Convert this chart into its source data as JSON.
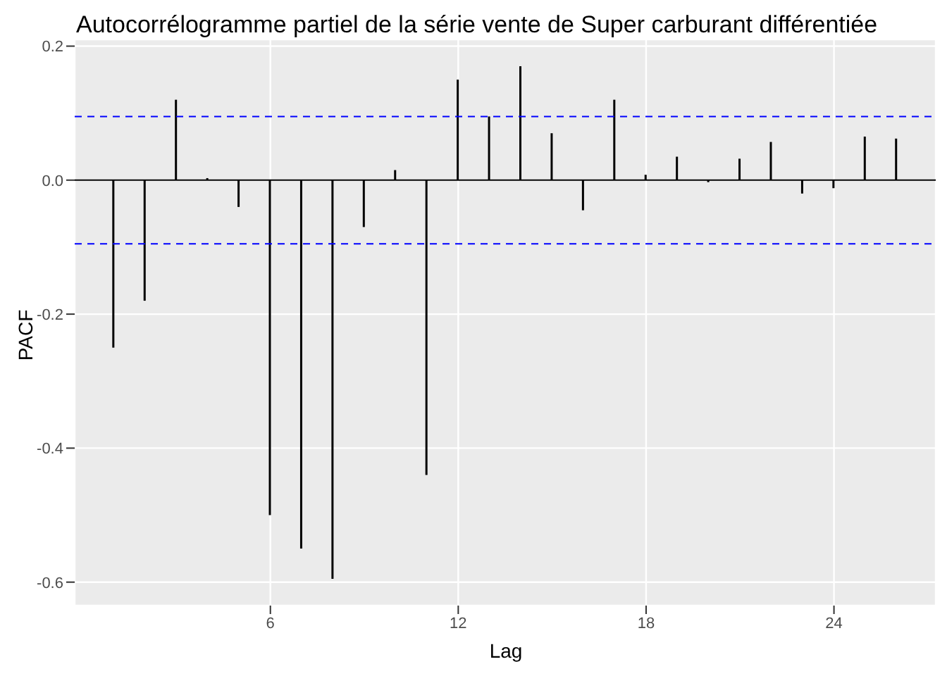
{
  "chart_data": {
    "type": "bar",
    "title": "Autocorrélogramme partiel de la série vente de Super carburant différentiée",
    "xlabel": "Lag",
    "ylabel": "PACF",
    "x": [
      1,
      2,
      3,
      4,
      5,
      6,
      7,
      8,
      9,
      10,
      11,
      12,
      13,
      14,
      15,
      16,
      17,
      18,
      19,
      20,
      21,
      22,
      23,
      24,
      25,
      26
    ],
    "values": [
      -0.25,
      -0.18,
      0.12,
      0.003,
      -0.04,
      -0.5,
      -0.55,
      -0.595,
      -0.07,
      0.015,
      -0.44,
      0.15,
      0.095,
      0.17,
      0.07,
      -0.045,
      0.12,
      0.008,
      0.035,
      -0.003,
      0.032,
      0.057,
      -0.02,
      -0.012,
      0.065,
      0.062
    ],
    "color": "#000000",
    "xlim": [
      -0.25,
      27.25
    ],
    "xticks": [
      6,
      12,
      18,
      24
    ],
    "ylim": [
      -0.635,
      0.21
    ],
    "yticks": [
      -0.6,
      -0.4,
      -0.2,
      {
        "value": 0,
        "label": "0.0"
      },
      0.2
    ],
    "ref_lines": [
      {
        "axis": "y",
        "value": 0.095,
        "color": "#0000ff",
        "line_style": "dashed"
      },
      {
        "axis": "y",
        "value": -0.095,
        "color": "#0000ff",
        "line_style": "dashed"
      }
    ],
    "grid": true
  }
}
